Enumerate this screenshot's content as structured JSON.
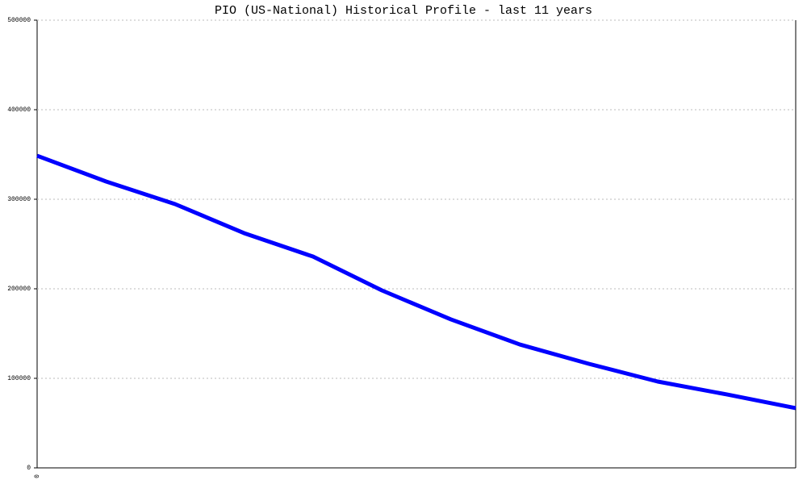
{
  "chart_data": {
    "type": "line",
    "title": "PIO (US-National) Historical Profile - last 11 years",
    "categories": [
      "0",
      null,
      null,
      null,
      null,
      null,
      null,
      null,
      null,
      null,
      null,
      null
    ],
    "values": [
      348600,
      319800,
      294600,
      262200,
      236000,
      198200,
      165800,
      137800,
      116200,
      96400,
      82000,
      66700
    ],
    "color": "#0000ff",
    "ylim": [
      0,
      500000
    ],
    "yticks": [
      0,
      100000,
      200000,
      300000,
      400000,
      500000
    ],
    "grid": true
  }
}
